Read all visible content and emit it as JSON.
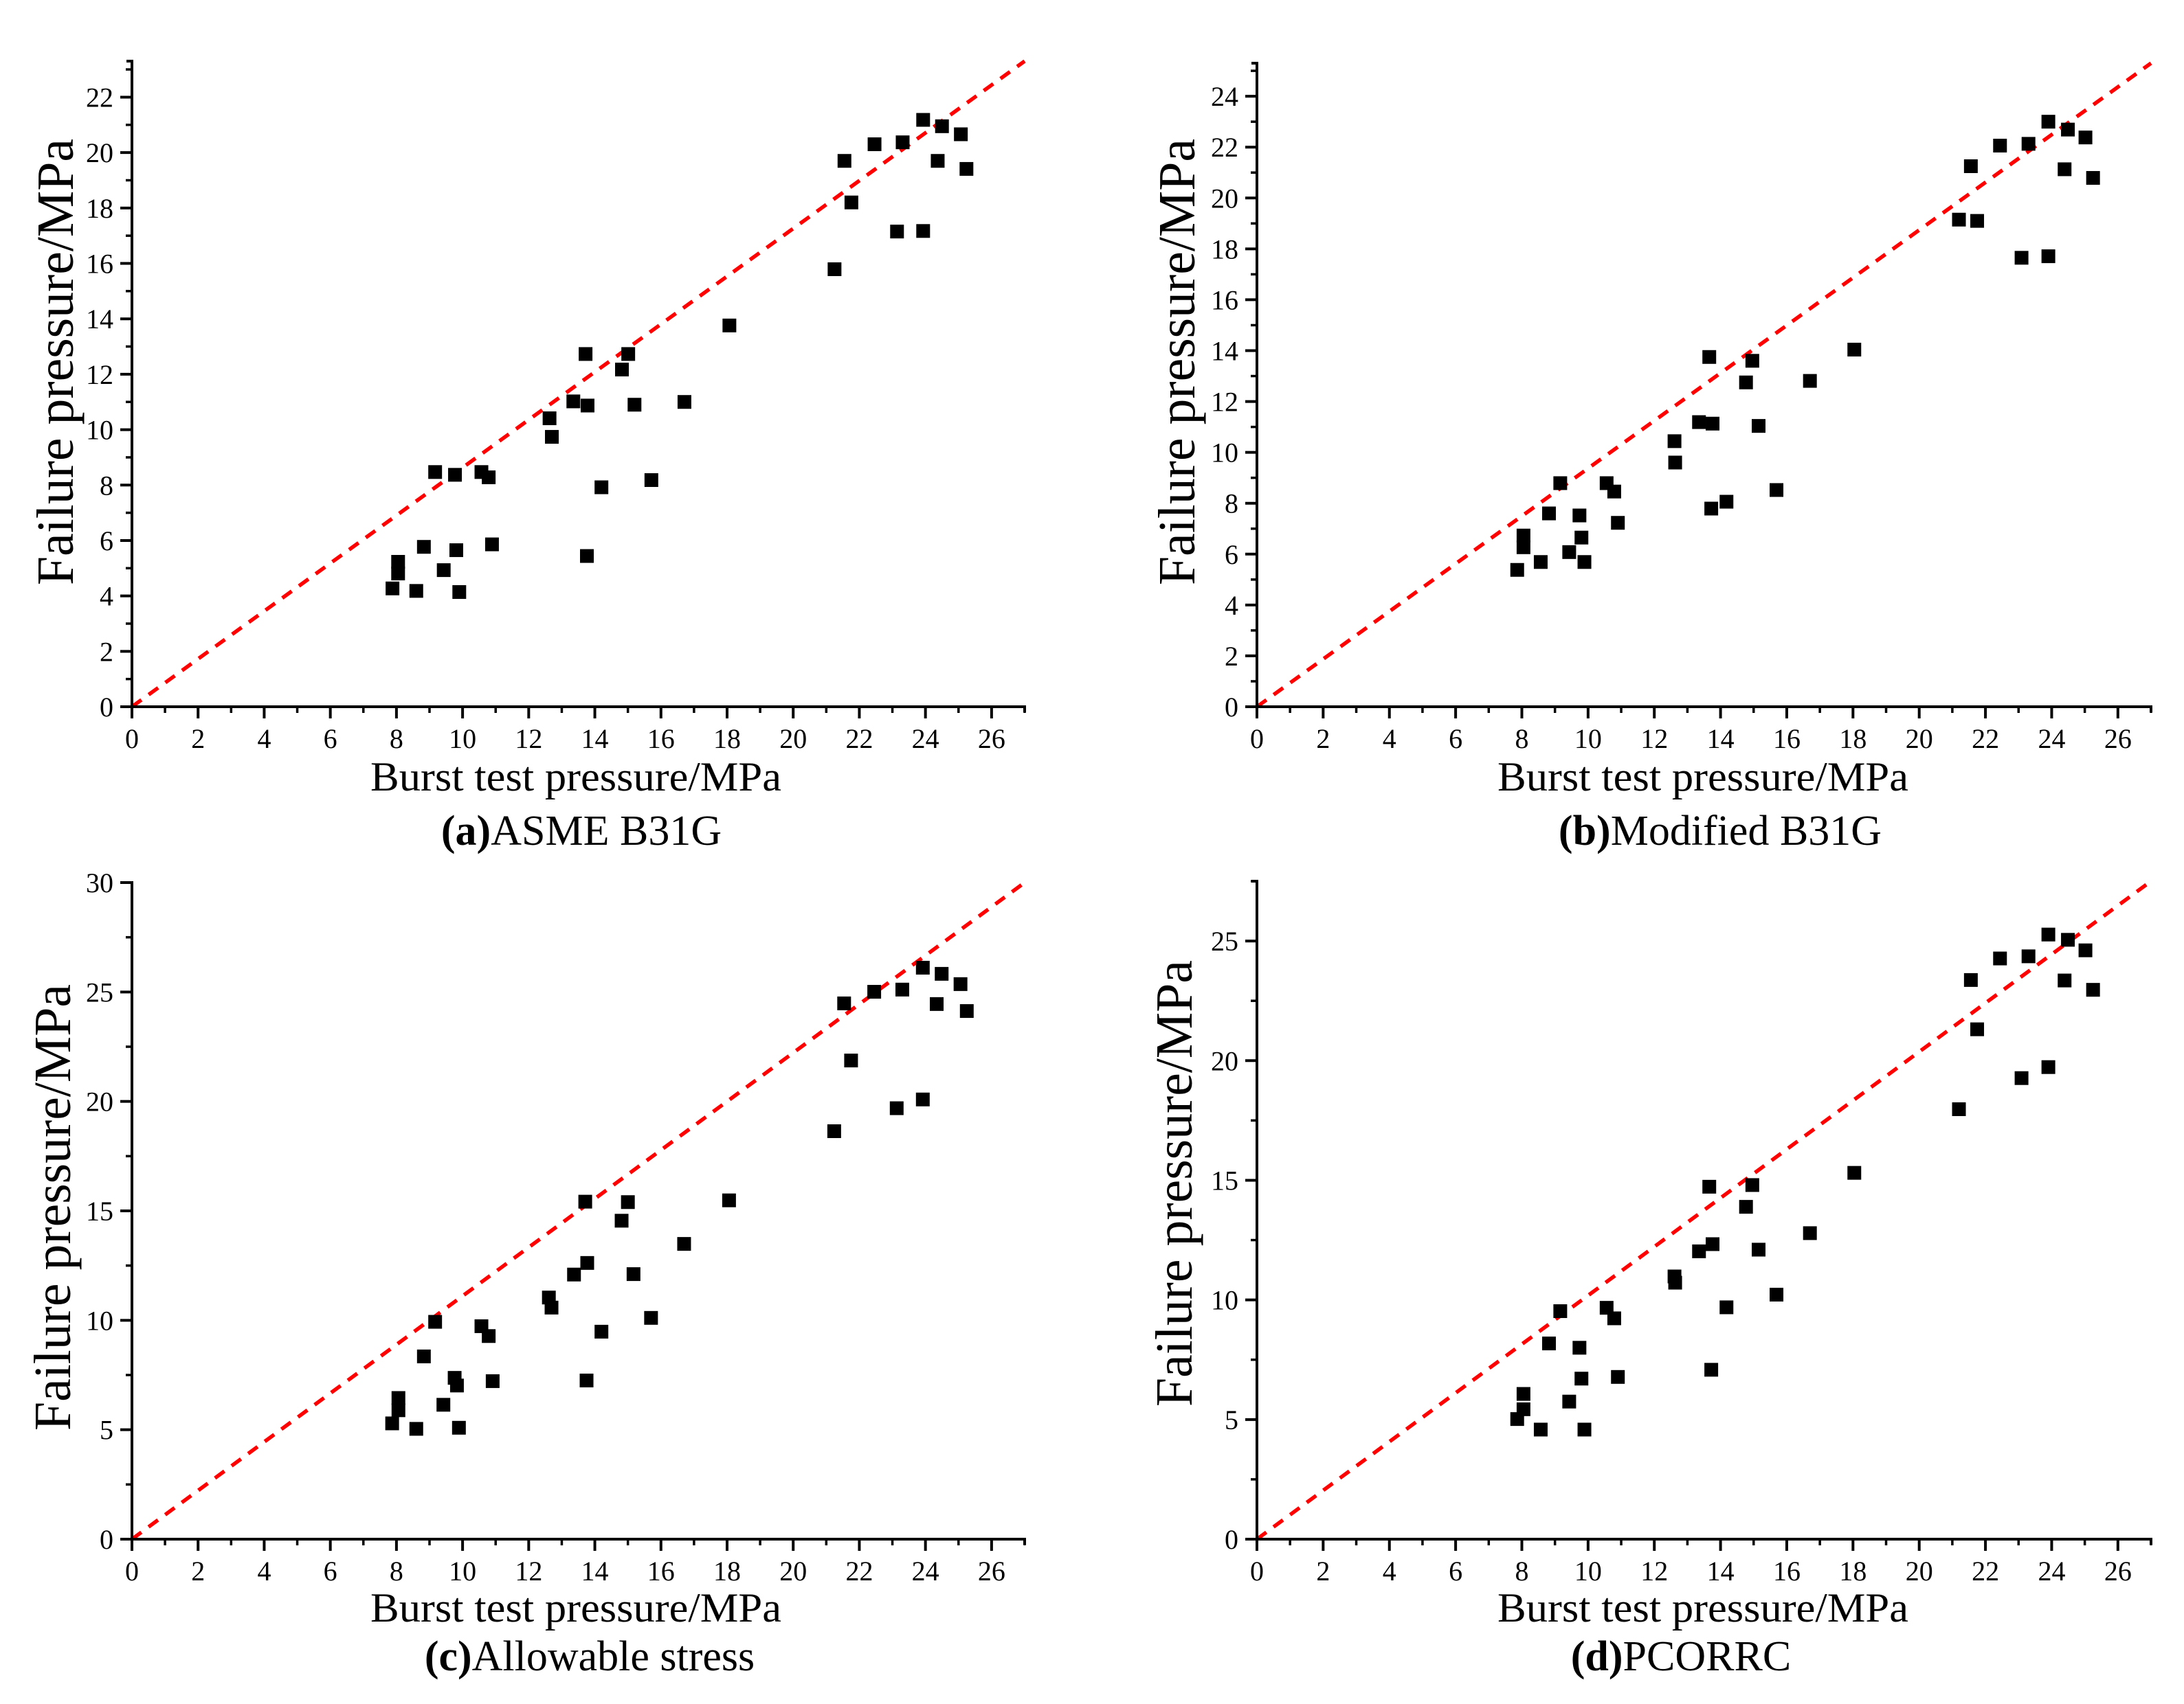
{
  "figure": {
    "colors": {
      "marker": "#000000",
      "axis": "#000000",
      "reference_line": "#ff0000",
      "background": "#ffffff"
    }
  },
  "chart_data": [
    {
      "type": "scatter",
      "label": "(a)",
      "name": "ASME B31G",
      "xlabel": "Burst test pressure/MPa",
      "ylabel": "Failure pressure/MPa",
      "xlim": [
        0,
        27
      ],
      "ylim": [
        0,
        23.3
      ],
      "xticks": [
        0,
        2,
        4,
        6,
        8,
        10,
        12,
        14,
        16,
        18,
        20,
        22,
        24,
        26
      ],
      "xtick_labels": [
        "0",
        "2",
        "4",
        "6",
        "8",
        "10",
        "12",
        "14",
        "16",
        "18",
        "20",
        "22",
        "24",
        "26"
      ],
      "x_minor_step": 1,
      "yticks": [
        0,
        2,
        4,
        6,
        8,
        10,
        12,
        14,
        16,
        18,
        20,
        22
      ],
      "ytick_labels": [
        "0",
        "2",
        "4",
        "6",
        "8",
        "10",
        "12",
        "14",
        "16",
        "18",
        "20",
        "22"
      ],
      "y_minor_step": 1,
      "grid": false,
      "reference_line": {
        "style": "dashed",
        "from": [
          0,
          0
        ],
        "to": [
          27,
          23.3
        ]
      },
      "marker": "square",
      "points": [
        [
          7.88,
          4.27
        ],
        [
          8.05,
          5.23
        ],
        [
          8.05,
          4.81
        ],
        [
          8.6,
          4.18
        ],
        [
          8.83,
          5.77
        ],
        [
          9.17,
          8.47
        ],
        [
          9.43,
          4.93
        ],
        [
          9.77,
          8.37
        ],
        [
          9.81,
          5.65
        ],
        [
          9.9,
          4.14
        ],
        [
          10.57,
          8.47
        ],
        [
          10.79,
          8.28
        ],
        [
          10.89,
          5.86
        ],
        [
          12.63,
          10.41
        ],
        [
          12.7,
          9.74
        ],
        [
          13.35,
          11.02
        ],
        [
          13.72,
          12.73
        ],
        [
          13.78,
          10.87
        ],
        [
          13.76,
          5.44
        ],
        [
          14.2,
          7.92
        ],
        [
          14.82,
          12.17
        ],
        [
          15.01,
          12.73
        ],
        [
          15.2,
          10.9
        ],
        [
          15.71,
          8.18
        ],
        [
          16.71,
          11.0
        ],
        [
          18.07,
          13.76
        ],
        [
          21.25,
          15.79
        ],
        [
          21.55,
          19.7
        ],
        [
          21.76,
          18.2
        ],
        [
          22.46,
          20.3
        ],
        [
          23.14,
          17.15
        ],
        [
          23.31,
          20.37
        ],
        [
          23.93,
          21.18
        ],
        [
          23.93,
          17.17
        ],
        [
          24.37,
          19.7
        ],
        [
          24.5,
          20.95
        ],
        [
          25.07,
          20.66
        ],
        [
          25.24,
          19.41
        ]
      ]
    },
    {
      "type": "scatter",
      "label": "(b)",
      "name": "Modified B31G",
      "xlabel": "Burst test pressure/MPa",
      "ylabel": "Failure pressure/MPa",
      "xlim": [
        0,
        27
      ],
      "ylim": [
        0,
        25.3
      ],
      "xticks": [
        0,
        2,
        4,
        6,
        8,
        10,
        12,
        14,
        16,
        18,
        20,
        22,
        24,
        26
      ],
      "xtick_labels": [
        "0",
        "2",
        "4",
        "6",
        "8",
        "10",
        "12",
        "14",
        "16",
        "18",
        "20",
        "22",
        "24",
        "26"
      ],
      "x_minor_step": 1,
      "yticks": [
        0,
        2,
        4,
        6,
        8,
        10,
        12,
        14,
        16,
        18,
        20,
        22,
        24
      ],
      "ytick_labels": [
        "0",
        "2",
        "4",
        "6",
        "8",
        "10",
        "12",
        "14",
        "16",
        "18",
        "20",
        "22",
        "24"
      ],
      "y_minor_step": 1,
      "grid": false,
      "reference_line": {
        "style": "dashed",
        "from": [
          0,
          0
        ],
        "to": [
          27,
          25.3
        ]
      },
      "marker": "square",
      "points": [
        [
          7.86,
          5.38
        ],
        [
          8.05,
          6.73
        ],
        [
          8.05,
          6.27
        ],
        [
          8.57,
          5.69
        ],
        [
          8.82,
          7.6
        ],
        [
          9.16,
          8.79
        ],
        [
          9.43,
          6.08
        ],
        [
          9.74,
          7.52
        ],
        [
          9.8,
          6.65
        ],
        [
          9.89,
          5.69
        ],
        [
          10.56,
          8.79
        ],
        [
          10.79,
          8.46
        ],
        [
          10.9,
          7.23
        ],
        [
          12.61,
          10.44
        ],
        [
          12.63,
          9.6
        ],
        [
          13.35,
          11.19
        ],
        [
          13.66,
          13.75
        ],
        [
          13.76,
          11.13
        ],
        [
          13.72,
          7.79
        ],
        [
          14.18,
          8.06
        ],
        [
          14.77,
          12.75
        ],
        [
          14.96,
          13.6
        ],
        [
          15.15,
          11.04
        ],
        [
          15.69,
          8.52
        ],
        [
          16.7,
          12.81
        ],
        [
          18.04,
          14.04
        ],
        [
          21.2,
          19.15
        ],
        [
          21.56,
          21.25
        ],
        [
          21.75,
          19.1
        ],
        [
          22.44,
          22.06
        ],
        [
          23.09,
          17.65
        ],
        [
          23.3,
          22.13
        ],
        [
          23.9,
          23.0
        ],
        [
          23.9,
          17.71
        ],
        [
          24.39,
          21.13
        ],
        [
          24.49,
          22.69
        ],
        [
          25.02,
          22.38
        ],
        [
          25.25,
          20.79
        ]
      ]
    },
    {
      "type": "scatter",
      "label": "(c)",
      "name": "Allowable stress",
      "xlabel": "Burst test pressure/MPa",
      "ylabel": "Failure pressure/MPa",
      "xlim": [
        0,
        27
      ],
      "ylim": [
        0,
        30
      ],
      "xticks": [
        0,
        2,
        4,
        6,
        8,
        10,
        12,
        14,
        16,
        18,
        20,
        22,
        24,
        26
      ],
      "xtick_labels": [
        "0",
        "2",
        "4",
        "6",
        "8",
        "10",
        "12",
        "14",
        "16",
        "18",
        "20",
        "22",
        "24",
        "26"
      ],
      "x_minor_step": 1,
      "yticks": [
        0,
        5,
        10,
        15,
        20,
        25,
        30
      ],
      "ytick_labels": [
        "0",
        "5",
        "10",
        "15",
        "20",
        "25",
        "30"
      ],
      "y_minor_step": 2.5,
      "grid": false,
      "reference_line": {
        "style": "dashed",
        "from": [
          0,
          0
        ],
        "to": [
          27,
          30
        ]
      },
      "marker": "square",
      "points": [
        [
          7.87,
          5.29
        ],
        [
          8.06,
          6.45
        ],
        [
          8.06,
          5.89
        ],
        [
          8.6,
          5.04
        ],
        [
          8.83,
          8.35
        ],
        [
          9.17,
          9.93
        ],
        [
          9.42,
          6.14
        ],
        [
          9.76,
          7.37
        ],
        [
          9.83,
          7.02
        ],
        [
          9.89,
          5.09
        ],
        [
          10.57,
          9.73
        ],
        [
          10.79,
          9.28
        ],
        [
          10.91,
          7.22
        ],
        [
          12.61,
          11.04
        ],
        [
          12.69,
          10.58
        ],
        [
          13.37,
          12.09
        ],
        [
          13.71,
          15.42
        ],
        [
          13.77,
          12.62
        ],
        [
          13.75,
          7.25
        ],
        [
          14.2,
          9.48
        ],
        [
          14.81,
          14.55
        ],
        [
          15.0,
          15.4
        ],
        [
          15.17,
          12.11
        ],
        [
          15.7,
          10.11
        ],
        [
          16.7,
          13.49
        ],
        [
          18.06,
          15.48
        ],
        [
          21.24,
          18.64
        ],
        [
          21.54,
          24.48
        ],
        [
          21.75,
          21.87
        ],
        [
          22.45,
          25.01
        ],
        [
          23.13,
          19.69
        ],
        [
          23.3,
          25.11
        ],
        [
          23.92,
          26.11
        ],
        [
          23.92,
          20.09
        ],
        [
          24.34,
          24.45
        ],
        [
          24.49,
          25.83
        ],
        [
          25.06,
          25.36
        ],
        [
          25.25,
          24.13
        ]
      ]
    },
    {
      "type": "scatter",
      "label": "(d)",
      "name": "PCORRC",
      "xlabel": "Burst test pressure/MPa",
      "ylabel": "Failure pressure/MPa",
      "xlim": [
        0,
        27
      ],
      "ylim": [
        0,
        27.5
      ],
      "xticks": [
        0,
        2,
        4,
        6,
        8,
        10,
        12,
        14,
        16,
        18,
        20,
        22,
        24,
        26
      ],
      "xtick_labels": [
        "0",
        "2",
        "4",
        "6",
        "8",
        "10",
        "12",
        "14",
        "16",
        "18",
        "20",
        "22",
        "24",
        "26"
      ],
      "x_minor_step": 1,
      "yticks": [
        0,
        5,
        10,
        15,
        20,
        25
      ],
      "ytick_labels": [
        "0",
        "5",
        "10",
        "15",
        "20",
        "25"
      ],
      "y_minor_step": 2.5,
      "grid": false,
      "reference_line": {
        "style": "dashed",
        "from": [
          0,
          0
        ],
        "to": [
          27,
          27.5
        ]
      },
      "marker": "square",
      "points": [
        [
          7.86,
          5.02
        ],
        [
          8.05,
          6.07
        ],
        [
          8.05,
          5.43
        ],
        [
          8.57,
          4.58
        ],
        [
          8.82,
          8.18
        ],
        [
          9.16,
          9.53
        ],
        [
          9.43,
          5.75
        ],
        [
          9.74,
          8.0
        ],
        [
          9.8,
          6.71
        ],
        [
          9.89,
          4.58
        ],
        [
          10.56,
          9.67
        ],
        [
          10.79,
          9.23
        ],
        [
          10.9,
          6.78
        ],
        [
          12.61,
          10.98
        ],
        [
          12.63,
          10.72
        ],
        [
          13.35,
          12.03
        ],
        [
          13.66,
          14.73
        ],
        [
          13.76,
          12.33
        ],
        [
          13.72,
          7.08
        ],
        [
          14.18,
          9.69
        ],
        [
          14.77,
          13.89
        ],
        [
          14.96,
          14.8
        ],
        [
          15.15,
          12.1
        ],
        [
          15.69,
          10.22
        ],
        [
          16.7,
          12.79
        ],
        [
          18.04,
          15.31
        ],
        [
          21.2,
          17.97
        ],
        [
          21.56,
          23.37
        ],
        [
          21.75,
          21.31
        ],
        [
          22.44,
          24.27
        ],
        [
          23.09,
          19.27
        ],
        [
          23.3,
          24.36
        ],
        [
          23.9,
          25.27
        ],
        [
          23.9,
          19.73
        ],
        [
          24.39,
          23.35
        ],
        [
          24.49,
          25.05
        ],
        [
          25.02,
          24.61
        ],
        [
          25.25,
          22.96
        ]
      ]
    }
  ]
}
